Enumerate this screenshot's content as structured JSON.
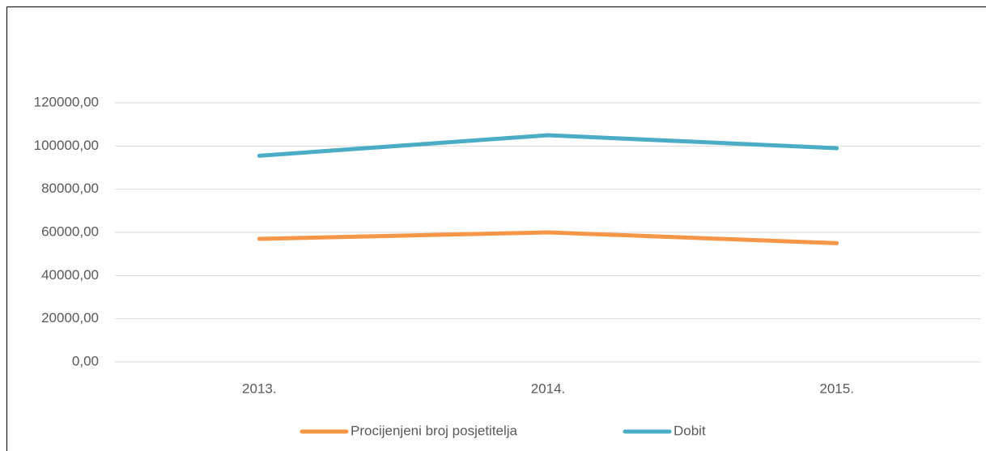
{
  "chart_data": {
    "type": "line",
    "categories": [
      "2013.",
      "2014.",
      "2015."
    ],
    "series": [
      {
        "name": "Procijenjeni broj posjetitelja",
        "color": "#f79646",
        "values": [
          57000,
          60000,
          55000
        ]
      },
      {
        "name": "Dobit",
        "color": "#4bacc6",
        "values": [
          95500,
          105000,
          99000
        ]
      }
    ],
    "ylim": [
      0,
      120000
    ],
    "yticks": [
      {
        "value": 0,
        "label": "0,00"
      },
      {
        "value": 20000,
        "label": "20000,00"
      },
      {
        "value": 40000,
        "label": "40000,00"
      },
      {
        "value": 60000,
        "label": "60000,00"
      },
      {
        "value": 80000,
        "label": "80000,00"
      },
      {
        "value": 100000,
        "label": "100000,00"
      },
      {
        "value": 120000,
        "label": "120000,00"
      }
    ],
    "grid": true,
    "legend": "bottom"
  }
}
